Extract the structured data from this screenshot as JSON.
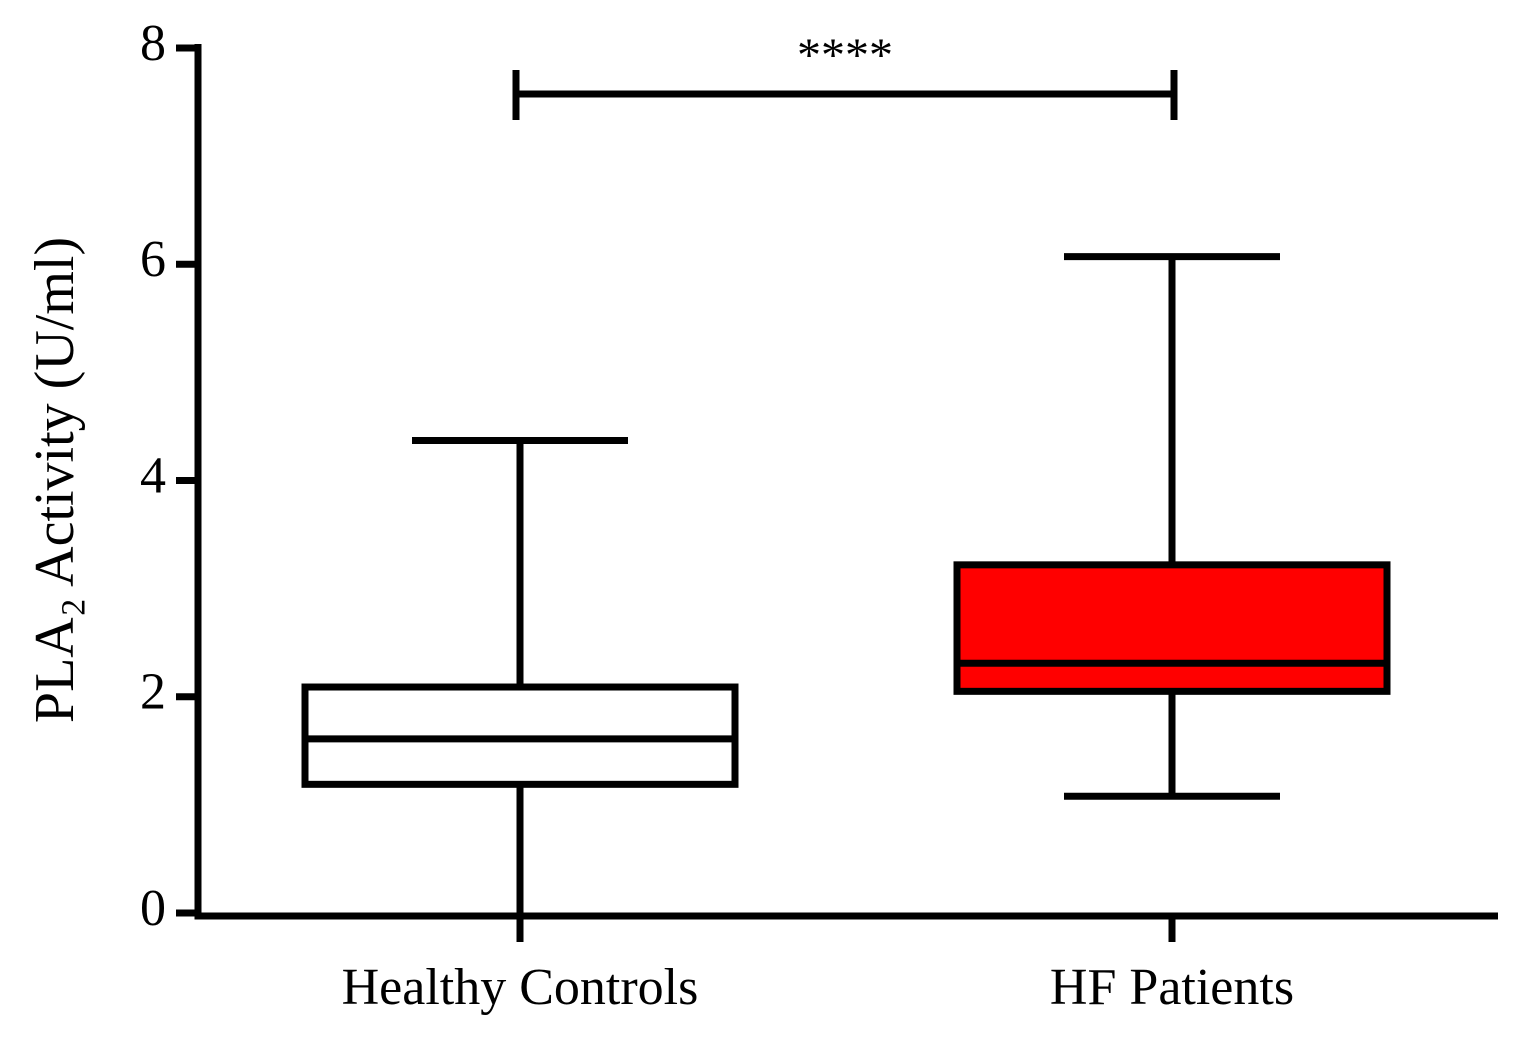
{
  "chart_data": {
    "type": "box",
    "y_label": "PLA₂ Activity (U/ml)",
    "categories": [
      "Healthy Controls",
      "HF Patients"
    ],
    "boxes": [
      {
        "min": 0,
        "q1": 1.19,
        "median": 1.61,
        "q3": 2.09,
        "max": 4.37,
        "color": "#ffffff"
      },
      {
        "min": 1.08,
        "q1": 2.05,
        "median": 2.31,
        "q3": 3.22,
        "max": 6.07,
        "color": "#ff0000"
      }
    ],
    "ylim": [
      0,
      8
    ],
    "yticks": [
      0,
      2,
      4,
      6,
      8
    ],
    "annotation": "****"
  }
}
